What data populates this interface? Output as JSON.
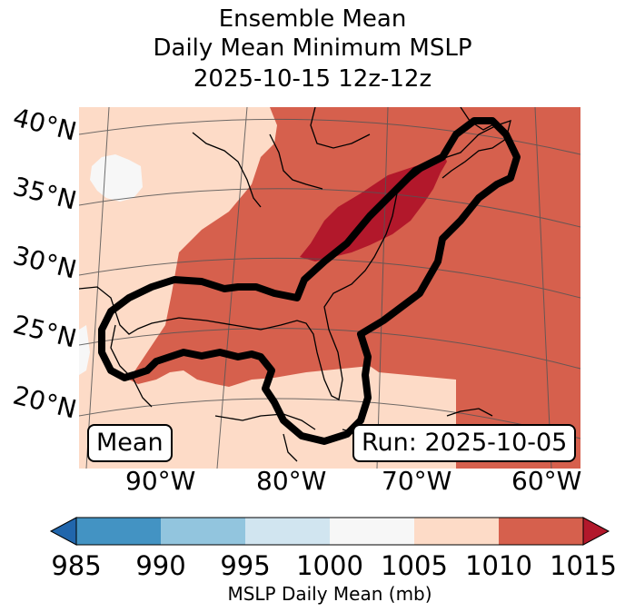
{
  "title": {
    "line1": "Ensemble Mean",
    "line2": "Daily Mean Minimum MSLP",
    "line3": "2025-10-15 12z-12z"
  },
  "map": {
    "lat_labels": [
      "40°N",
      "35°N",
      "30°N",
      "25°N",
      "20°N"
    ],
    "lon_labels": [
      "90°W",
      "80°W",
      "70°W",
      "60°W"
    ],
    "mean_box": "Mean",
    "run_box": "Run: 2025-10-05"
  },
  "colorbar": {
    "label": "MSLP Daily Mean (mb)",
    "ticks": [
      "985",
      "990",
      "995",
      "1000",
      "1005",
      "1010",
      "1015"
    ],
    "colors": {
      "under": "#2166ac",
      "c985_990": "#4393c3",
      "c990_995": "#92c5de",
      "c995_1000": "#d1e5f0",
      "c1000_1005": "#f7f7f7",
      "c1005_1010": "#fddbc7",
      "c1010_1015": "#d6604d",
      "over": "#b2182b"
    }
  }
}
